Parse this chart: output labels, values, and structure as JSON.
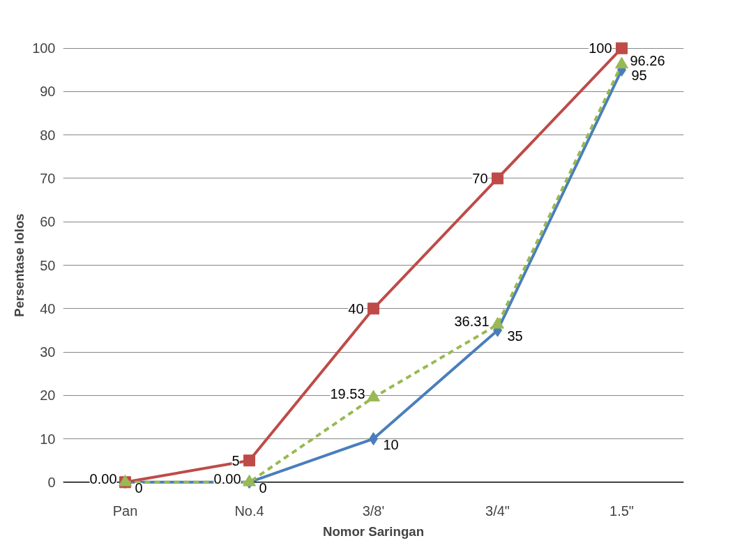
{
  "chart_data": {
    "type": "line",
    "xlabel": "Nomor Saringan",
    "ylabel": "Persentase lolos",
    "categories": [
      "Pan",
      "No.4",
      "3/8'",
      "3/4\"",
      "1.5\""
    ],
    "ylim": [
      0,
      100
    ],
    "yticks": [
      0,
      10,
      20,
      30,
      40,
      50,
      60,
      70,
      80,
      90,
      100
    ],
    "grid": "y",
    "series": [
      {
        "color": "#4a7ebb",
        "marker": "diamond",
        "line_style": "solid",
        "values": [
          0,
          0,
          10,
          35,
          95
        ],
        "value_labels": [
          "0",
          "0",
          "10",
          "35",
          "95"
        ]
      },
      {
        "color": "#be4b48",
        "marker": "square",
        "line_style": "solid",
        "values": [
          0,
          5,
          40,
          70,
          100
        ],
        "value_labels": [
          null,
          "5",
          "40",
          "70",
          "100"
        ]
      },
      {
        "color": "#98b954",
        "marker": "triangle",
        "line_style": "dashed",
        "values": [
          0,
          0,
          19.53,
          36.31,
          96.26
        ],
        "value_labels": [
          "0.00",
          "0.00",
          "19.53",
          "36.31",
          "96.26"
        ]
      }
    ]
  }
}
